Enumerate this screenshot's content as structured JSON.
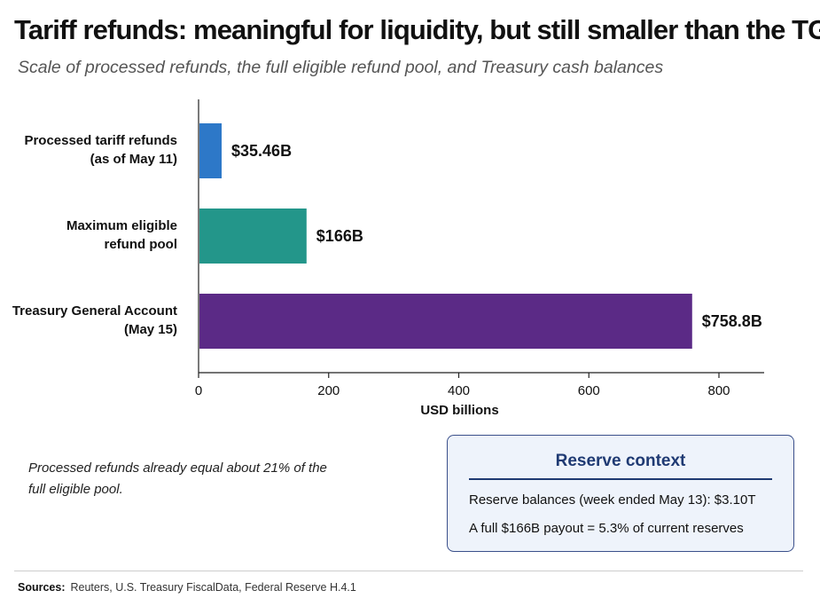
{
  "title": "Tariff refunds: meaningful for liquidity, but still smaller than the TGA",
  "subtitle": "Scale of processed refunds, the full eligible refund pool, and Treasury cash balances",
  "chart_data": {
    "type": "bar",
    "orientation": "horizontal",
    "categories": [
      [
        "Processed tariff refunds",
        "(as of May 11)"
      ],
      [
        "Maximum eligible",
        "refund pool"
      ],
      [
        "Treasury General Account",
        "(May 15)"
      ]
    ],
    "values": [
      35.46,
      166,
      758.8
    ],
    "value_labels": [
      "$35.46B",
      "$166B",
      "$758.8B"
    ],
    "colors": [
      "#2d78c8",
      "#23968a",
      "#5b2a86"
    ],
    "xlabel": "USD billions",
    "xlim": [
      0,
      880
    ],
    "xticks": [
      0,
      200,
      400,
      600,
      800
    ],
    "grid": false
  },
  "note": "Processed refunds already equal about 21% of the full eligible pool.",
  "context": {
    "title": "Reserve context",
    "line1": "Reserve balances (week ended May 13): $3.10T",
    "line2": "A full $166B payout = 5.3% of current reserves"
  },
  "sources": {
    "label": "Sources:",
    "text": "Reuters, U.S. Treasury FiscalData, Federal Reserve H.4.1"
  }
}
